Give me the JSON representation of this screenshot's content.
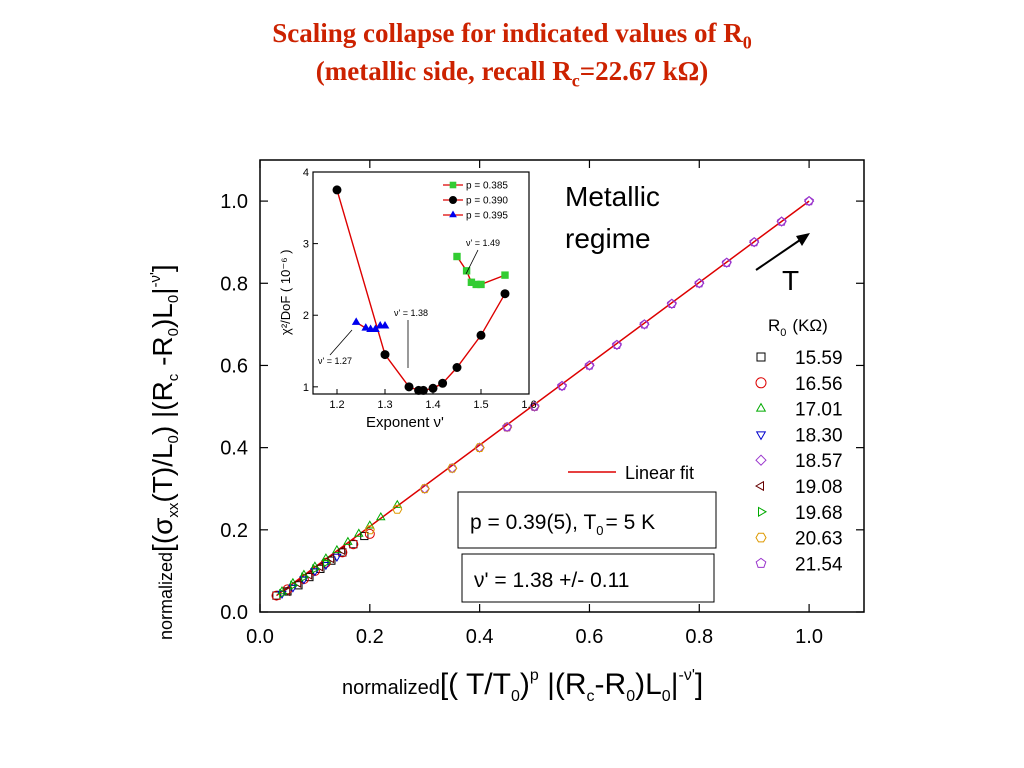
{
  "slide": {
    "title_line1": "Scaling collapse for indicated values of R",
    "title_line1_sub": "0",
    "title_line2_a": "(metallic side, recall  R",
    "title_line2_sub": "c",
    "title_line2_b": "=22.67 kΩ)"
  },
  "chart_data": [
    {
      "type": "scatter",
      "xlim": [
        0.0,
        1.1
      ],
      "ylim": [
        0.0,
        1.1
      ],
      "x_ticks": [
        "0.0",
        "0.2",
        "0.4",
        "0.6",
        "0.8",
        "1.0"
      ],
      "y_ticks": [
        "0.0",
        "0.2",
        "0.4",
        "0.6",
        "0.8",
        "1.0"
      ],
      "xlabel": {
        "prefix": "normalized",
        "body": "[( T/T",
        "sub0": "0",
        "mid": ")",
        "sup": "p",
        "body2": " |(R",
        "sub_c": "c",
        "body3": "-R",
        "sub_0b": "0",
        "body4": ")L",
        "sub_0c": "0",
        "body5": "|",
        "sup2": "-ν'",
        "end": "]"
      },
      "ylabel": {
        "prefix": "normalized",
        "body": "[(σ",
        "sub_xx": "xx",
        "body2": "(T)/L",
        "sub_0": "0",
        "body3": ") |(R",
        "sub_c": "c",
        "body4": " -R",
        "sub_0b": "0",
        "body5": ")L",
        "sub_0c": "0",
        "body6": "|",
        "sup": "-ν'",
        "end": "]"
      },
      "legend_title": "R",
      "legend_title_sub": "0",
      "legend_title_unit": "(KΩ)",
      "series": [
        {
          "name": "15.59",
          "marker": "square",
          "color": "#000000",
          "x": [
            0.03,
            0.05,
            0.07,
            0.09,
            0.11,
            0.13,
            0.15,
            0.17,
            0.19
          ],
          "y": [
            0.04,
            0.05,
            0.065,
            0.085,
            0.105,
            0.125,
            0.145,
            0.165,
            0.185
          ]
        },
        {
          "name": "16.56",
          "marker": "circle",
          "color": "#dd0000",
          "x": [
            0.03,
            0.05,
            0.08,
            0.1,
            0.12,
            0.15,
            0.17,
            0.2
          ],
          "y": [
            0.04,
            0.055,
            0.08,
            0.1,
            0.12,
            0.145,
            0.165,
            0.19
          ]
        },
        {
          "name": "17.01",
          "marker": "triangle-up",
          "color": "#00aa00",
          "x": [
            0.04,
            0.06,
            0.08,
            0.1,
            0.12,
            0.14,
            0.16,
            0.18,
            0.2,
            0.22,
            0.25
          ],
          "y": [
            0.05,
            0.07,
            0.09,
            0.11,
            0.13,
            0.15,
            0.17,
            0.19,
            0.21,
            0.23,
            0.26
          ]
        },
        {
          "name": "18.30",
          "marker": "triangle-down",
          "color": "#0000cc",
          "x": [
            0.04,
            0.06,
            0.08,
            0.1,
            0.12,
            0.14
          ],
          "y": [
            0.045,
            0.06,
            0.08,
            0.1,
            0.115,
            0.135
          ]
        },
        {
          "name": "18.57",
          "marker": "diamond",
          "color": "#9933cc",
          "x": [
            0.3,
            0.35,
            0.4,
            0.45,
            0.5,
            0.55,
            0.6,
            0.65,
            0.7,
            0.75,
            0.8,
            0.85,
            0.9,
            0.95,
            1.0
          ],
          "y": [
            0.3,
            0.35,
            0.4,
            0.45,
            0.5,
            0.55,
            0.6,
            0.65,
            0.7,
            0.75,
            0.8,
            0.85,
            0.9,
            0.95,
            1.0
          ]
        },
        {
          "name": "19.08",
          "marker": "triangle-left",
          "color": "#660000",
          "x": [
            0.05,
            0.07,
            0.09,
            0.11,
            0.13,
            0.15
          ],
          "y": [
            0.05,
            0.07,
            0.09,
            0.11,
            0.13,
            0.15
          ]
        },
        {
          "name": "19.68",
          "marker": "triangle-right",
          "color": "#00aa00",
          "x": [
            0.04,
            0.06,
            0.08,
            0.1,
            0.12
          ],
          "y": [
            0.045,
            0.065,
            0.085,
            0.105,
            0.12
          ]
        },
        {
          "name": "20.63",
          "marker": "hexagon",
          "color": "#dd9900",
          "x": [
            0.2,
            0.25,
            0.3,
            0.35,
            0.4,
            0.45,
            0.5
          ],
          "y": [
            0.2,
            0.25,
            0.3,
            0.35,
            0.4,
            0.45,
            0.5
          ]
        },
        {
          "name": "21.54",
          "marker": "pentagon",
          "color": "#9933cc",
          "x": [
            0.45,
            0.5,
            0.55,
            0.6,
            0.65,
            0.7,
            0.75,
            0.8,
            0.85,
            0.9,
            0.95,
            1.0
          ],
          "y": [
            0.45,
            0.5,
            0.55,
            0.6,
            0.65,
            0.7,
            0.75,
            0.8,
            0.85,
            0.9,
            0.95,
            1.0
          ]
        }
      ],
      "fit": {
        "name": "Linear fit",
        "color": "#dd0000",
        "x": [
          0.03,
          1.0
        ],
        "y": [
          0.04,
          1.0
        ]
      },
      "annotations": {
        "regime_line1": "Metallic",
        "regime_line2": "regime",
        "arrow_label": "T",
        "box1_a": "p = 0.39(5), T",
        "box1_sub": "0",
        "box1_b": "= 5 K",
        "box2": "ν' = 1.38 +/- 0.11"
      }
    },
    {
      "type": "scatter",
      "xlim": [
        1.15,
        1.6
      ],
      "ylim": [
        0.9,
        4.0
      ],
      "x_ticks": [
        "1.2",
        "1.3",
        "1.4",
        "1.5",
        "1.6"
      ],
      "y_ticks": [
        "1",
        "2",
        "3",
        "4"
      ],
      "xlabel": "Exponent ν'",
      "ylabel": "χ²/DoF  ( 10⁻⁶ )",
      "series": [
        {
          "name": "p = 0.385",
          "marker": "square",
          "color": "#33cc33",
          "x": [
            1.45,
            1.47,
            1.48,
            1.49,
            1.5,
            1.55
          ],
          "y": [
            2.82,
            2.62,
            2.46,
            2.43,
            2.43,
            2.56
          ]
        },
        {
          "name": "p = 0.390",
          "marker": "circle",
          "color": "#000000",
          "x": [
            1.2,
            1.3,
            1.35,
            1.37,
            1.38,
            1.4,
            1.42,
            1.45,
            1.5,
            1.55
          ],
          "y": [
            3.75,
            1.45,
            1.0,
            0.95,
            0.95,
            0.98,
            1.05,
            1.27,
            1.72,
            2.3
          ]
        },
        {
          "name": "p = 0.395",
          "marker": "triangle-up",
          "color": "#0000ee",
          "x": [
            1.24,
            1.26,
            1.27,
            1.28,
            1.29,
            1.3
          ],
          "y": [
            1.9,
            1.82,
            1.8,
            1.8,
            1.85,
            1.85
          ]
        }
      ],
      "annotations": {
        "a1": "ν' = 1.27",
        "a2": "ν' = 1.38",
        "a3": "ν' = 1.49"
      }
    }
  ]
}
